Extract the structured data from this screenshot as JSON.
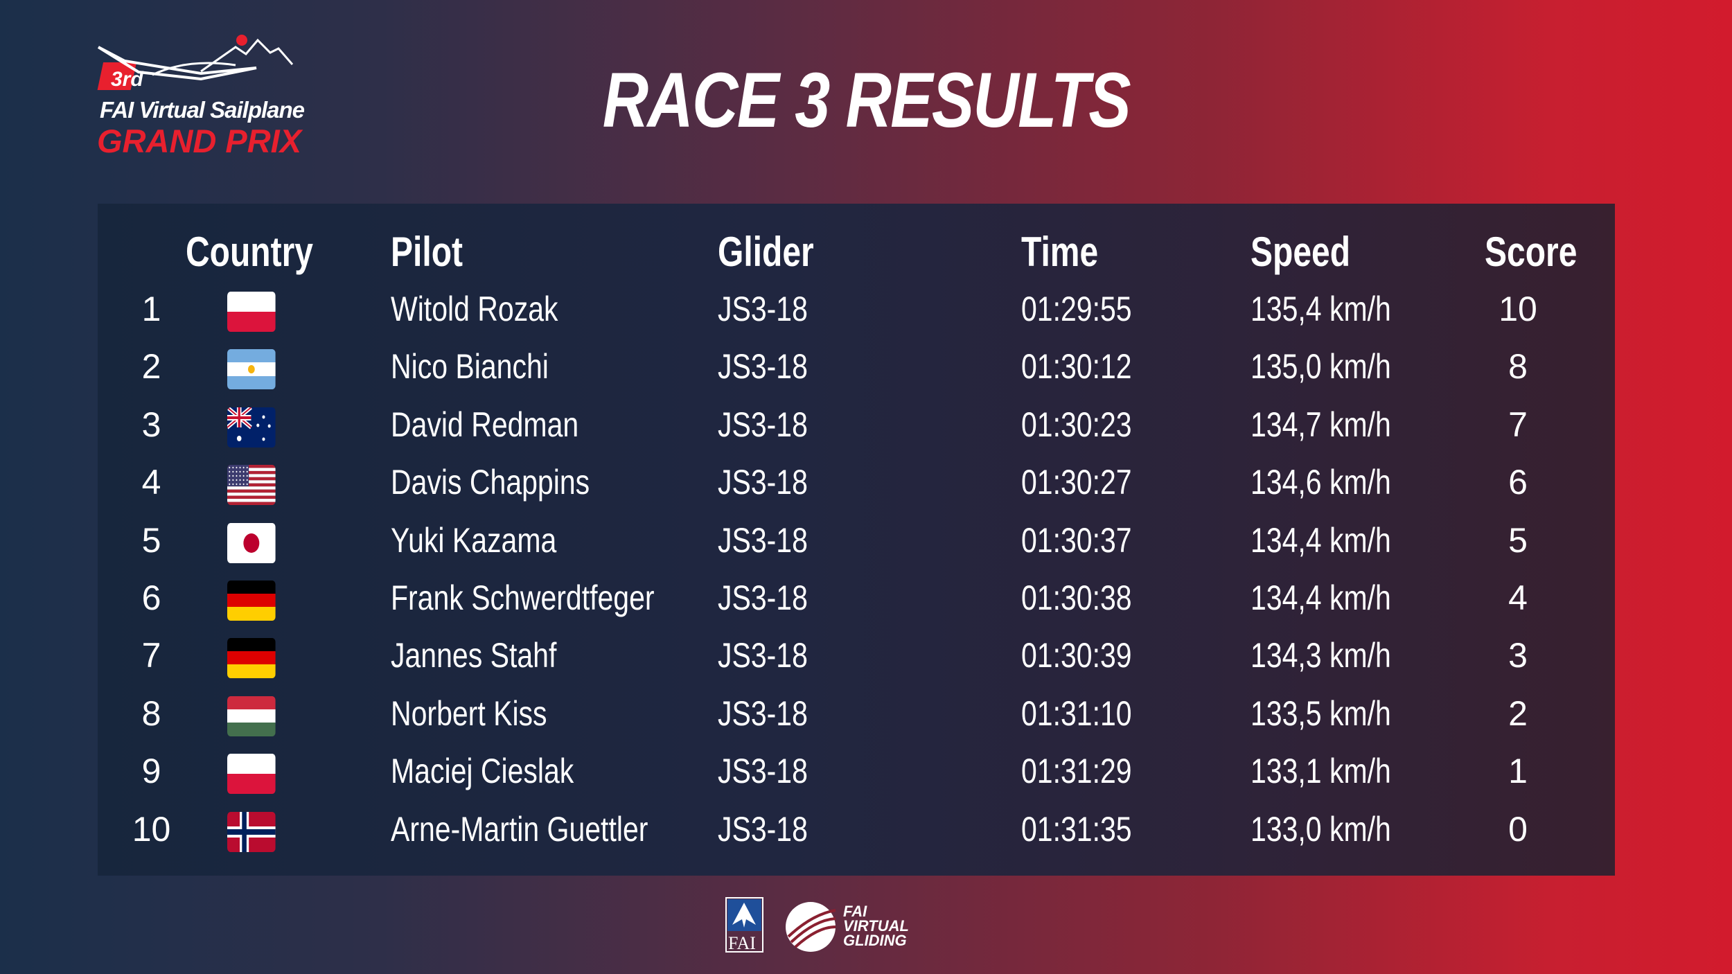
{
  "logo": {
    "badge": "3rd",
    "line1": "FAI Virtual Sailplane",
    "line2": "GRAND PRIX"
  },
  "title": "RACE 3 RESULTS",
  "table": {
    "headers": {
      "country": "Country",
      "pilot": "Pilot",
      "glider": "Glider",
      "time": "Time",
      "speed": "Speed",
      "score": "Score"
    },
    "rows": [
      {
        "rank": "1",
        "country": "poland-flag-icon",
        "pilot": "Witold Rozak",
        "glider": "JS3-18",
        "time": "01:29:55",
        "speed": "135,4 km/h",
        "score": "10"
      },
      {
        "rank": "2",
        "country": "argentina-flag-icon",
        "pilot": "Nico Bianchi",
        "glider": "JS3-18",
        "time": "01:30:12",
        "speed": "135,0 km/h",
        "score": "8"
      },
      {
        "rank": "3",
        "country": "australia-flag-icon",
        "pilot": "David Redman",
        "glider": "JS3-18",
        "time": "01:30:23",
        "speed": "134,7 km/h",
        "score": "7"
      },
      {
        "rank": "4",
        "country": "usa-flag-icon",
        "pilot": "Davis Chappins",
        "glider": "JS3-18",
        "time": "01:30:27",
        "speed": "134,6 km/h",
        "score": "6"
      },
      {
        "rank": "5",
        "country": "japan-flag-icon",
        "pilot": "Yuki Kazama",
        "glider": "JS3-18",
        "time": "01:30:37",
        "speed": "134,4 km/h",
        "score": "5"
      },
      {
        "rank": "6",
        "country": "germany-flag-icon",
        "pilot": "Frank Schwerdtfeger",
        "glider": "JS3-18",
        "time": "01:30:38",
        "speed": "134,4 km/h",
        "score": "4"
      },
      {
        "rank": "7",
        "country": "germany-flag-icon",
        "pilot": "Jannes Stahf",
        "glider": "JS3-18",
        "time": "01:30:39",
        "speed": "134,3 km/h",
        "score": "3"
      },
      {
        "rank": "8",
        "country": "hungary-flag-icon",
        "pilot": "Norbert Kiss",
        "glider": "JS3-18",
        "time": "01:31:10",
        "speed": "133,5 km/h",
        "score": "2"
      },
      {
        "rank": "9",
        "country": "poland-flag-icon",
        "pilot": "Maciej Cieslak",
        "glider": "JS3-18",
        "time": "01:31:29",
        "speed": "133,1 km/h",
        "score": "1"
      },
      {
        "rank": "10",
        "country": "norway-flag-icon",
        "pilot": "Arne-Martin Guettler",
        "glider": "JS3-18",
        "time": "01:31:35",
        "speed": "133,0 km/h",
        "score": "0"
      }
    ]
  },
  "footer": {
    "fai_label": "FAI",
    "vg_line1": "FAI",
    "vg_line2": "VIRTUAL",
    "vg_line3": "GLIDING"
  },
  "colors": {
    "accent_red": "#e8202e",
    "background_left": "#1b2f4a",
    "background_right": "#d21b2d"
  }
}
